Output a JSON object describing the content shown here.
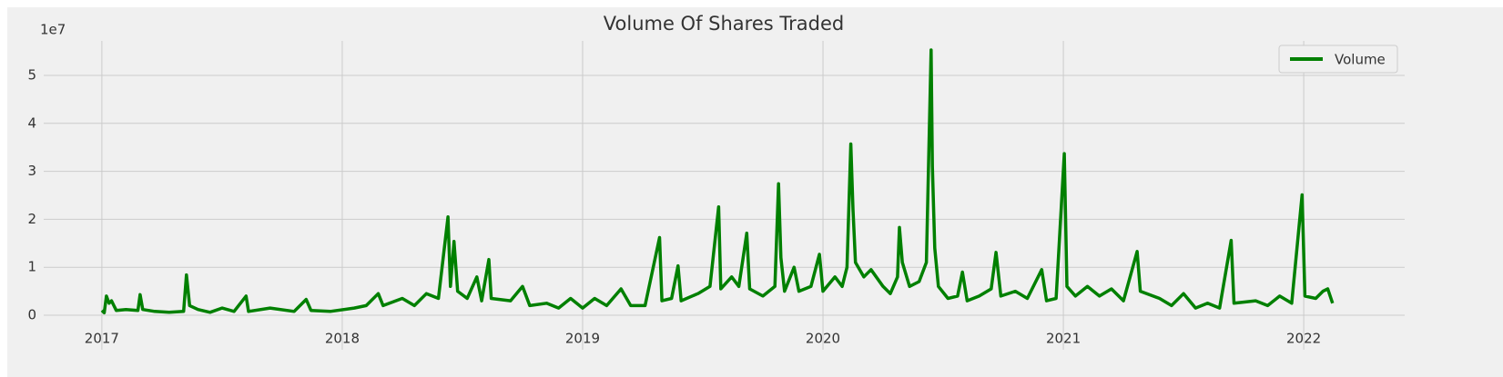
{
  "chart_data": {
    "type": "line",
    "title": "Volume Of Shares Traded",
    "y_offset_label": "1e7",
    "x": [
      2017.0,
      2017.01,
      2017.019,
      2017.03,
      2017.04,
      2017.06,
      2017.1,
      2017.15,
      2017.159,
      2017.17,
      2017.22,
      2017.28,
      2017.34,
      2017.352,
      2017.365,
      2017.4,
      2017.45,
      2017.5,
      2017.55,
      2017.6,
      2017.61,
      2017.7,
      2017.8,
      2017.85,
      2017.87,
      2017.95,
      2018.05,
      2018.1,
      2018.15,
      2018.17,
      2018.25,
      2018.3,
      2018.35,
      2018.4,
      2018.44,
      2018.45,
      2018.465,
      2018.48,
      2018.52,
      2018.56,
      2018.58,
      2018.61,
      2018.62,
      2018.7,
      2018.75,
      2018.78,
      2018.85,
      2018.9,
      2018.95,
      2019.0,
      2019.05,
      2019.1,
      2019.16,
      2019.2,
      2019.26,
      2019.32,
      2019.33,
      2019.37,
      2019.397,
      2019.41,
      2019.48,
      2019.53,
      2019.566,
      2019.575,
      2019.62,
      2019.65,
      2019.683,
      2019.695,
      2019.75,
      2019.8,
      2019.815,
      2019.825,
      2019.84,
      2019.88,
      2019.9,
      2019.95,
      2019.985,
      2020.0,
      2020.05,
      2020.08,
      2020.1,
      2020.116,
      2020.125,
      2020.135,
      2020.17,
      2020.2,
      2020.25,
      2020.28,
      2020.31,
      2020.318,
      2020.33,
      2020.36,
      2020.4,
      2020.43,
      2020.45,
      2020.455,
      2020.465,
      2020.48,
      2020.52,
      2020.56,
      2020.58,
      2020.6,
      2020.65,
      2020.7,
      2020.72,
      2020.74,
      2020.8,
      2020.85,
      2020.91,
      2020.93,
      2020.97,
      2021.004,
      2021.015,
      2021.05,
      2021.1,
      2021.15,
      2021.2,
      2021.25,
      2021.307,
      2021.32,
      2021.4,
      2021.45,
      2021.5,
      2021.55,
      2021.6,
      2021.65,
      2021.698,
      2021.71,
      2021.8,
      2021.85,
      2021.9,
      2021.95,
      2021.993,
      2022.005,
      2022.05,
      2022.08,
      2022.1,
      2022.12
    ],
    "series": [
      {
        "name": "Volume",
        "color": "#008000",
        "values": [
          0.1,
          0.05,
          0.4,
          0.25,
          0.3,
          0.1,
          0.12,
          0.1,
          0.43,
          0.12,
          0.08,
          0.06,
          0.08,
          0.84,
          0.2,
          0.12,
          0.06,
          0.15,
          0.08,
          0.4,
          0.08,
          0.15,
          0.08,
          0.33,
          0.1,
          0.08,
          0.15,
          0.2,
          0.45,
          0.2,
          0.35,
          0.2,
          0.45,
          0.35,
          2.05,
          0.6,
          1.54,
          0.5,
          0.35,
          0.8,
          0.3,
          1.16,
          0.35,
          0.3,
          0.6,
          0.2,
          0.25,
          0.15,
          0.35,
          0.15,
          0.35,
          0.2,
          0.55,
          0.2,
          0.2,
          1.62,
          0.3,
          0.35,
          1.03,
          0.3,
          0.45,
          0.6,
          2.26,
          0.55,
          0.8,
          0.6,
          1.71,
          0.55,
          0.4,
          0.6,
          2.74,
          1.2,
          0.5,
          1.0,
          0.5,
          0.6,
          1.27,
          0.5,
          0.8,
          0.6,
          1.0,
          3.57,
          2.2,
          1.1,
          0.8,
          0.95,
          0.6,
          0.45,
          0.8,
          1.83,
          1.1,
          0.6,
          0.7,
          1.1,
          5.53,
          3.1,
          1.4,
          0.6,
          0.35,
          0.4,
          0.9,
          0.3,
          0.4,
          0.55,
          1.31,
          0.4,
          0.5,
          0.35,
          0.95,
          0.3,
          0.35,
          3.37,
          0.6,
          0.4,
          0.6,
          0.4,
          0.55,
          0.3,
          1.33,
          0.5,
          0.35,
          0.2,
          0.45,
          0.15,
          0.25,
          0.15,
          1.56,
          0.25,
          0.3,
          0.2,
          0.4,
          0.25,
          2.51,
          0.4,
          0.35,
          0.5,
          0.55,
          0.25
        ]
      }
    ],
    "xlim": [
      2016.758,
      2022.42
    ],
    "ylim": [
      -0.72,
      5.72
    ],
    "xticks": [
      2017,
      2018,
      2019,
      2020,
      2021,
      2022
    ],
    "yticks": [
      0,
      1,
      2,
      3,
      4,
      5
    ],
    "grid": true,
    "legend": "upper right"
  }
}
